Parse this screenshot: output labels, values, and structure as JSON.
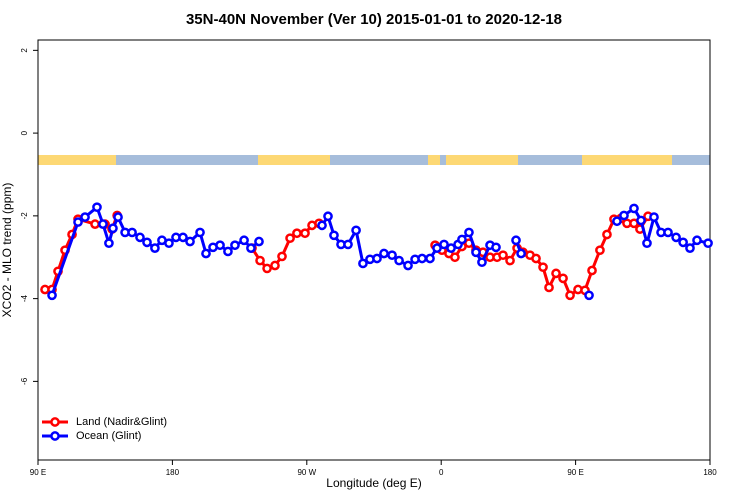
{
  "chart_data": {
    "type": "line",
    "title": "35N-40N November (Ver 10)   2015-01-01 to 2020-12-18",
    "x_label": "Longitude (deg E)",
    "y_label": "XCO2 - MLO trend (ppm)",
    "xlim": [
      90,
      540
    ],
    "xticks": [
      {
        "value": 90,
        "label": "90 E"
      },
      180,
      {
        "value": 270,
        "label": "90 W"
      },
      {
        "value": 360,
        "label": "0"
      },
      {
        "value": 450,
        "label": "90 E"
      },
      {
        "value": 540,
        "label": "180"
      }
    ],
    "ylim": [
      -7.9,
      2.25
    ],
    "yticks": [
      2,
      0,
      -2,
      -4,
      -6
    ],
    "legend": "bottom-left",
    "series": [
      {
        "name": "Land (Nadir&Glint)",
        "color": "#ff0000",
        "x": [
          94.7,
          99.4,
          103.4,
          108.1,
          112.8,
          116.8,
          128.2,
          134.9,
          139.6,
          143.0,
          null,
          233.3,
          238.7,
          243.4,
          248.7,
          253.4,
          258.8,
          263.4,
          268.8,
          273.5,
          278.2,
          null,
          355.9,
          360.5,
          365.2,
          369.2,
          373.9,
          378.6,
          383.3,
          388.0,
          392.7,
          397.4,
          401.4,
          406.1,
          410.8,
          414.8,
          419.5,
          423.5,
          428.2,
          432.2,
          436.9,
          441.6,
          446.3,
          451.6,
          456.3,
          461.0,
          466.3,
          471.0,
          475.7,
          480.4,
          484.4,
          489.1,
          493.1,
          498.5
        ],
        "values": [
          -3.78,
          -3.78,
          -3.34,
          -2.83,
          -2.45,
          -2.08,
          -2.2,
          -2.2,
          -2.32,
          -1.99,
          null,
          -2.78,
          -3.08,
          -3.27,
          -3.2,
          -2.98,
          -2.54,
          -2.42,
          -2.42,
          -2.23,
          -2.18,
          null,
          -2.71,
          -2.83,
          -2.91,
          -3.0,
          -2.74,
          -2.66,
          -2.83,
          -2.88,
          -3.0,
          -3.0,
          -2.95,
          -3.08,
          -2.78,
          -2.88,
          -2.95,
          -3.03,
          -3.24,
          -3.73,
          -3.39,
          -3.51,
          -3.92,
          -3.78,
          -3.8,
          -3.32,
          -2.83,
          -2.45,
          -2.08,
          -2.06,
          -2.18,
          -2.18,
          -2.32,
          -2.01
        ]
      },
      {
        "name": "Ocean (Glint)",
        "color": "#0000ff",
        "x": [
          99.4,
          116.8,
          121.5,
          129.5,
          133.5,
          137.5,
          140.2,
          143.6,
          148.3,
          153.0,
          158.3,
          163.0,
          168.3,
          173.0,
          177.7,
          182.4,
          187.1,
          191.8,
          198.5,
          202.5,
          207.2,
          211.9,
          217.2,
          221.9,
          228.0,
          232.6,
          238.0,
          null,
          280.2,
          284.2,
          288.2,
          292.9,
          297.6,
          303.0,
          307.6,
          312.3,
          317.0,
          321.7,
          327.1,
          331.8,
          337.8,
          342.5,
          347.2,
          352.5,
          357.2,
          361.9,
          366.6,
          371.3,
          373.9,
          378.6,
          383.3,
          387.3,
          392.7,
          396.7,
          null,
          410.1,
          413.5,
          null,
          459.0,
          null,
          477.7,
          482.4,
          489.1,
          493.8,
          497.8,
          502.5,
          507.2,
          511.9,
          517.3,
          522.0,
          526.6,
          531.3,
          538.7
        ],
        "values": [
          -3.92,
          -2.15,
          -2.03,
          -1.79,
          -2.2,
          -2.66,
          -2.3,
          -2.03,
          -2.4,
          -2.4,
          -2.52,
          -2.64,
          -2.78,
          -2.59,
          -2.66,
          -2.52,
          -2.52,
          -2.62,
          -2.4,
          -2.91,
          -2.76,
          -2.71,
          -2.86,
          -2.71,
          -2.59,
          -2.78,
          -2.62,
          null,
          -2.23,
          -2.01,
          -2.47,
          -2.69,
          -2.69,
          -2.35,
          -3.15,
          -3.05,
          -3.03,
          -2.91,
          -2.95,
          -3.08,
          -3.2,
          -3.05,
          -3.03,
          -3.03,
          -2.78,
          -2.69,
          -2.78,
          -2.69,
          -2.57,
          -2.4,
          -2.88,
          -3.12,
          -2.71,
          -2.76,
          null,
          -2.59,
          -2.91,
          null,
          -3.92,
          null,
          -2.13,
          -1.99,
          -1.82,
          -2.11,
          -2.66,
          -2.03,
          -2.4,
          -2.4,
          -2.52,
          -2.64,
          -2.78,
          -2.59,
          -2.66
        ]
      }
    ]
  }
}
